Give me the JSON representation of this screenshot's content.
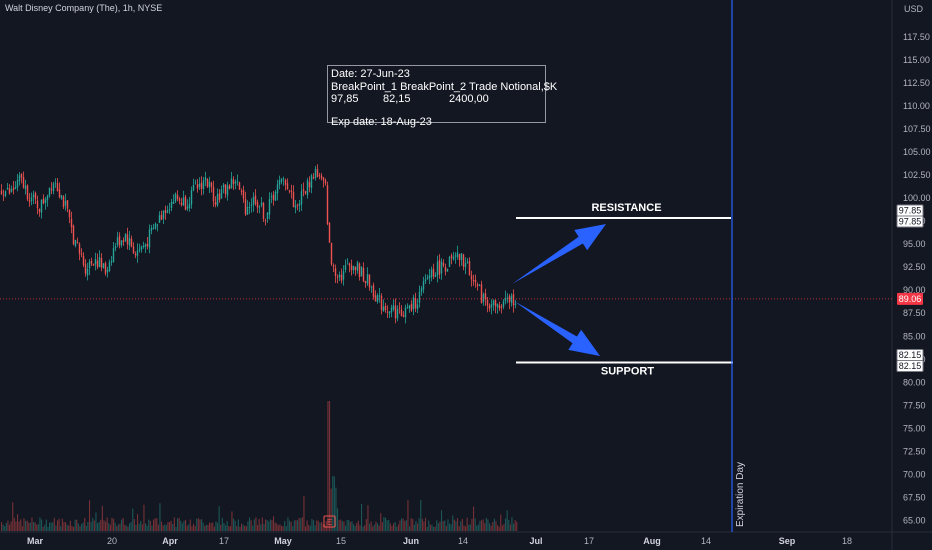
{
  "header": {
    "ticker": "Walt Disney Company (The), 1h, NYSE"
  },
  "note": {
    "line1": "Date: 27-Jun-23",
    "line2": "BreakPoint_1 BreakPoint_2 Trade Notional,$K",
    "v1": "97,85",
    "v2": "82,15",
    "v3": "2400,00",
    "line4": "Exp date: 18-Aug-23"
  },
  "chart_data": {
    "type": "candlestick",
    "currency_label": "USD",
    "y_axis": {
      "range": [
        64.5,
        120
      ],
      "ticks": [
        "117.50",
        "115.00",
        "112.50",
        "110.00",
        "107.50",
        "105.00",
        "102.50",
        "100.00",
        "97.50",
        "95.00",
        "92.50",
        "90.00",
        "87.50",
        "85.00",
        "82.50",
        "80.00",
        "77.50",
        "75.00",
        "72.50",
        "70.00",
        "67.50",
        "65.00"
      ]
    },
    "x_axis": {
      "ticks": [
        "Mar",
        "20",
        "Apr",
        "17",
        "May",
        "15",
        "Jun",
        "14",
        "Jul",
        "17",
        "Aug",
        "14",
        "Sep",
        "18"
      ]
    },
    "price_path": [
      [
        0,
        101
      ],
      [
        10,
        100.5
      ],
      [
        20,
        102
      ],
      [
        30,
        100
      ],
      [
        40,
        99
      ],
      [
        50,
        101.5
      ],
      [
        55,
        102
      ],
      [
        65,
        99
      ],
      [
        75,
        95
      ],
      [
        85,
        92.5
      ],
      [
        95,
        93.5
      ],
      [
        105,
        92
      ],
      [
        115,
        95
      ],
      [
        125,
        96
      ],
      [
        135,
        94
      ],
      [
        145,
        95
      ],
      [
        155,
        97
      ],
      [
        165,
        99
      ],
      [
        175,
        100
      ],
      [
        185,
        99.5
      ],
      [
        195,
        101
      ],
      [
        205,
        102
      ],
      [
        215,
        100
      ],
      [
        225,
        101
      ],
      [
        235,
        102
      ],
      [
        245,
        99
      ],
      [
        255,
        100
      ],
      [
        265,
        98
      ],
      [
        275,
        101
      ],
      [
        285,
        102
      ],
      [
        295,
        99
      ],
      [
        305,
        101
      ],
      [
        315,
        103
      ],
      [
        325,
        101
      ],
      [
        330,
        93
      ],
      [
        340,
        91.5
      ],
      [
        350,
        93
      ],
      [
        360,
        92
      ],
      [
        370,
        90.5
      ],
      [
        380,
        88.5
      ],
      [
        390,
        88
      ],
      [
        400,
        87.5
      ],
      [
        410,
        88
      ],
      [
        420,
        89.5
      ],
      [
        430,
        92
      ],
      [
        440,
        92.5
      ],
      [
        450,
        93
      ],
      [
        460,
        93.5
      ],
      [
        470,
        92
      ],
      [
        480,
        89.5
      ],
      [
        490,
        88.5
      ],
      [
        500,
        88
      ],
      [
        510,
        89
      ],
      [
        515,
        89.1
      ]
    ],
    "last_price": "89.06",
    "last_price_color": "#f23645",
    "resistance": {
      "label": "RESISTANCE",
      "value": 97.85,
      "axis_labels": [
        "97.85",
        "97.85"
      ]
    },
    "support": {
      "label": "SUPPORT",
      "value": 82.15,
      "axis_labels": [
        "82.15",
        "82.15"
      ]
    },
    "expiration_label": "Expiration Day",
    "earnings_marker": "E",
    "colors": {
      "up": "#26a69a",
      "down": "#ef5350",
      "arrow": "#2962ff",
      "expiration_line": "#2962ff",
      "level_line": "#ffffff"
    },
    "grid": false
  }
}
